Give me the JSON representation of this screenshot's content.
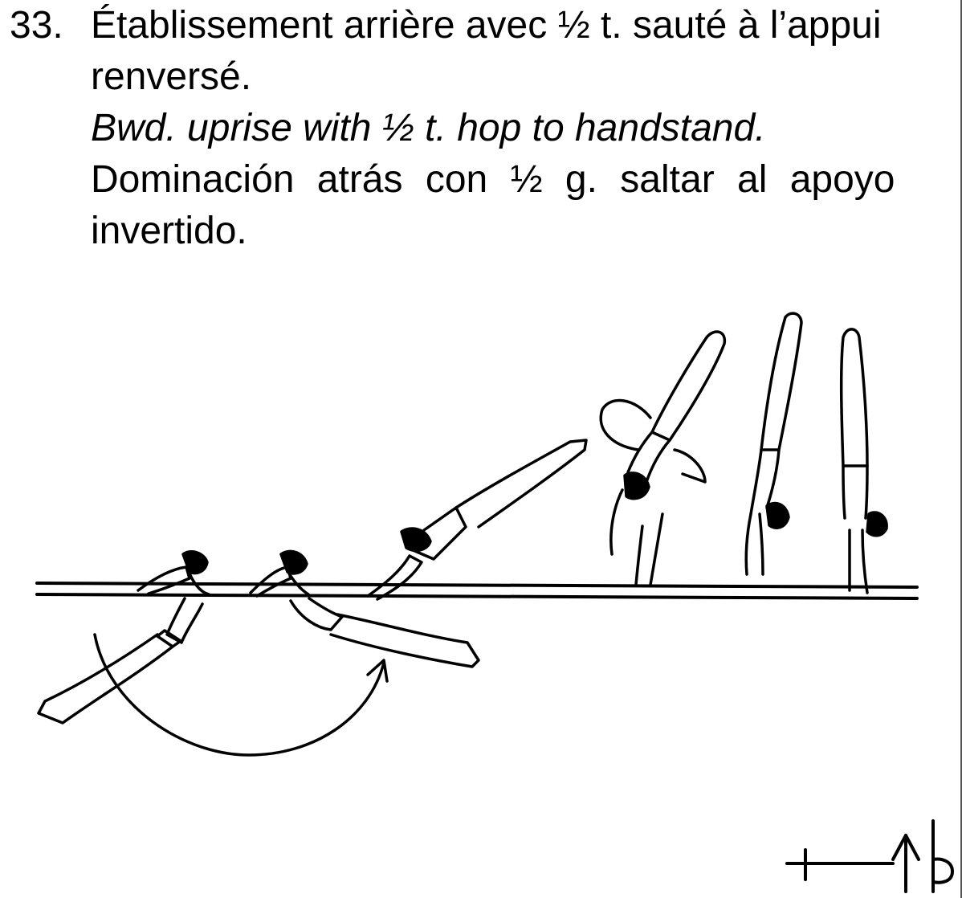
{
  "element": {
    "number": "33.",
    "french": {
      "line1": "Établissement arrière avec ½ t. sauté à l’appui",
      "line2": "renversé."
    },
    "english": "Bwd. uprise with ½ t. hop to handstand.",
    "spanish": {
      "line1": "Dominación atrás con ½ g. saltar al apoyo",
      "line2": "invertido."
    }
  },
  "colors": {
    "ink": "#000000",
    "background": "#ffffff"
  },
  "icons": [
    "bar-line",
    "gymnast-figure",
    "rotation-arrow",
    "symbol-notation"
  ]
}
